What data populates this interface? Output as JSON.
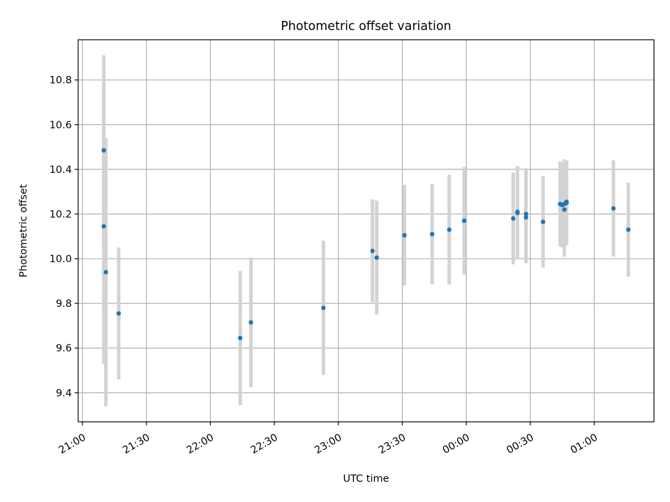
{
  "chart_data": {
    "type": "scatter",
    "title": "Photometric offset variation",
    "xlabel": "UTC time",
    "ylabel": "Photometric offset",
    "x_ticks": [
      "21:00",
      "21:30",
      "22:00",
      "22:30",
      "23:00",
      "23:30",
      "00:00",
      "00:30",
      "01:00"
    ],
    "y_ticks": [
      "9.4",
      "9.6",
      "9.8",
      "10.0",
      "10.2",
      "10.4",
      "10.6",
      "10.8"
    ],
    "xlim": [
      "20:58",
      "01:28"
    ],
    "ylim": [
      9.27,
      10.98
    ],
    "grid": true,
    "colors": {
      "points": "#1f77b4",
      "errorbars": "#d3d3d3",
      "grid": "#b0b0b0"
    },
    "points": [
      {
        "time": "21:10",
        "y": 10.485,
        "err": 0.425
      },
      {
        "time": "21:10",
        "y": 10.145,
        "err": 0.615
      },
      {
        "time": "21:11",
        "y": 9.94,
        "err": 0.6
      },
      {
        "time": "21:17",
        "y": 9.755,
        "err": 0.295
      },
      {
        "time": "22:14",
        "y": 9.645,
        "err": 0.3
      },
      {
        "time": "22:19",
        "y": 9.715,
        "err": 0.29
      },
      {
        "time": "22:53",
        "y": 9.78,
        "err": 0.3
      },
      {
        "time": "23:16",
        "y": 10.035,
        "err": 0.23
      },
      {
        "time": "23:18",
        "y": 10.005,
        "err": 0.255
      },
      {
        "time": "23:31",
        "y": 10.105,
        "err": 0.225
      },
      {
        "time": "23:44",
        "y": 10.11,
        "err": 0.225
      },
      {
        "time": "23:52",
        "y": 10.13,
        "err": 0.245
      },
      {
        "time": "23:59",
        "y": 10.17,
        "err": 0.24
      },
      {
        "time": "00:22",
        "y": 10.18,
        "err": 0.205
      },
      {
        "time": "00:24",
        "y": 10.21,
        "err": 0.205
      },
      {
        "time": "00:24",
        "y": 10.205,
        "err": 0.205
      },
      {
        "time": "00:28",
        "y": 10.185,
        "err": 0.205
      },
      {
        "time": "00:28",
        "y": 10.2,
        "err": 0.205
      },
      {
        "time": "00:36",
        "y": 10.165,
        "err": 0.205
      },
      {
        "time": "00:44",
        "y": 10.245,
        "err": 0.19
      },
      {
        "time": "00:45",
        "y": 10.24,
        "err": 0.19
      },
      {
        "time": "00:46",
        "y": 10.22,
        "err": 0.21
      },
      {
        "time": "00:46",
        "y": 10.245,
        "err": 0.2
      },
      {
        "time": "00:47",
        "y": 10.25,
        "err": 0.19
      },
      {
        "time": "00:47",
        "y": 10.255,
        "err": 0.18
      },
      {
        "time": "01:09",
        "y": 10.225,
        "err": 0.215
      },
      {
        "time": "01:16",
        "y": 10.13,
        "err": 0.21
      }
    ]
  }
}
